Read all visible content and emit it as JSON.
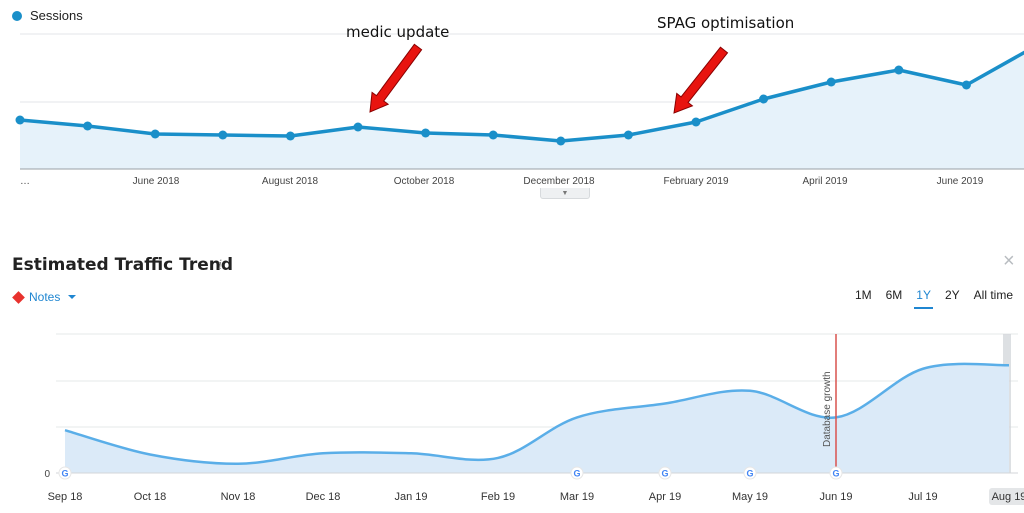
{
  "top_panel": {
    "legend": {
      "label": "Sessions",
      "color": "#1a8fc9"
    },
    "annotations": [
      {
        "text": "medic update"
      },
      {
        "text": "SPAG optimisation"
      }
    ],
    "collapse_icon": "chevron-down-icon"
  },
  "bottom_panel": {
    "title": "Estimated Traffic Trend",
    "info_icon": "i",
    "close_icon": "×",
    "notes": {
      "label": "Notes",
      "color": "#e8322e"
    },
    "ranges": [
      "1M",
      "6M",
      "1Y",
      "2Y",
      "All time"
    ],
    "active_range": "1Y",
    "event_label": "Database growth",
    "zero_label": "0"
  },
  "colors": {
    "sessions_line": "#1a8fc9",
    "sessions_fill": "#e6f2fa",
    "traffic_line": "#5aaee8",
    "traffic_fill": "#dbeaf8",
    "event_line": "#d9534f",
    "accent": "#1f86d1"
  },
  "chart_data": [
    {
      "type": "area",
      "name": "Sessions",
      "x_labels": [
        "…",
        "June 2018",
        "August 2018",
        "October 2018",
        "December 2018",
        "February 2019",
        "April 2019",
        "June 2019"
      ],
      "values": [
        49,
        43,
        35,
        34,
        33,
        42,
        36,
        34,
        28,
        34,
        47,
        70,
        87,
        99,
        84,
        122
      ],
      "grid": true
    },
    {
      "type": "area",
      "name": "Estimated Traffic",
      "categories": [
        "Sep 18",
        "Oct 18",
        "Nov 18",
        "Dec 18",
        "Jan 19",
        "Feb 19",
        "Mar 19",
        "Apr 19",
        "May 19",
        "Jun 19",
        "Jul 19",
        "Aug 19"
      ],
      "values": [
        37,
        16,
        8,
        17,
        17,
        13,
        48,
        60,
        71,
        48,
        90,
        93
      ],
      "google_markers": [
        "Sep 18",
        "Mar 19",
        "Apr 19",
        "May 19",
        "Jun 19"
      ],
      "event": {
        "label": "Database growth",
        "at": "Jun 19"
      },
      "y_zero_label": "0",
      "grid": true
    }
  ]
}
